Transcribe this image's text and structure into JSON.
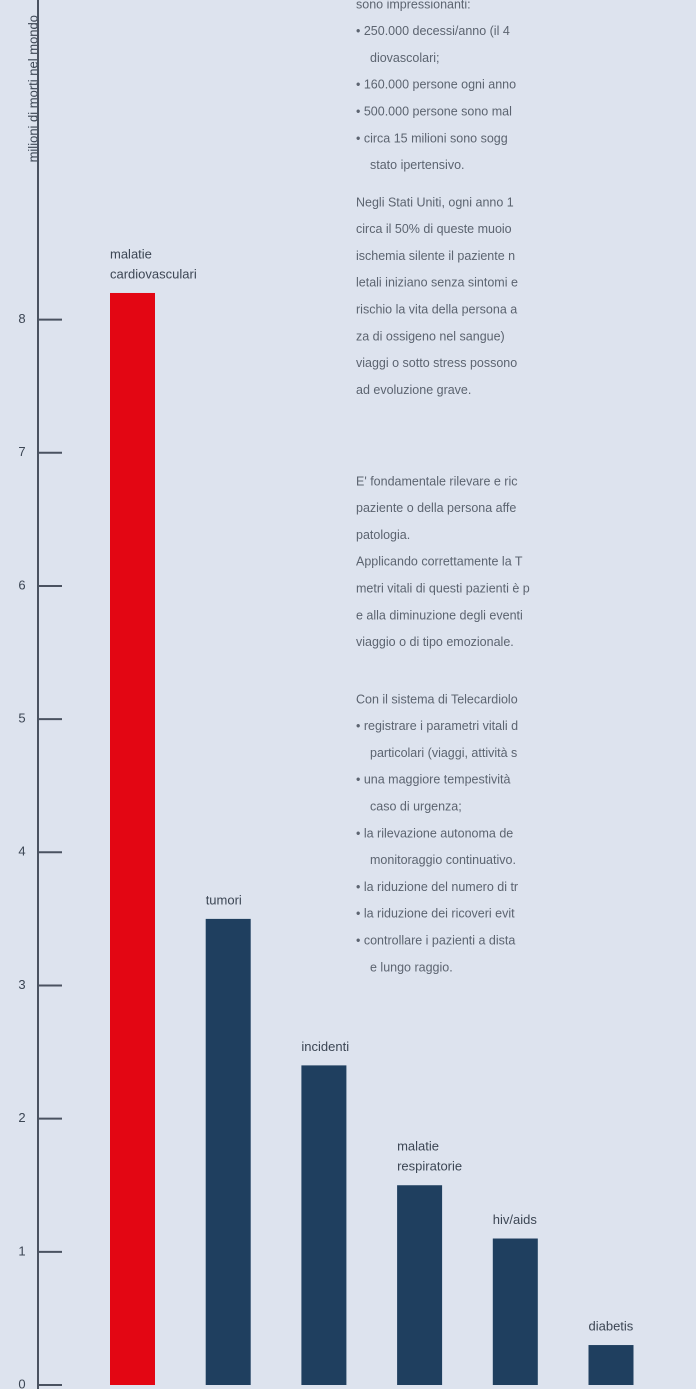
{
  "chart_data": {
    "type": "bar",
    "y_label": "milioni di morti nel mondo",
    "categories": [
      [
        "malatie",
        "cardiovasculari"
      ],
      [
        "tumori"
      ],
      [
        "incidenti"
      ],
      [
        "malatie",
        "respiratorie"
      ],
      [
        "hiv/aids"
      ],
      [
        "diabetis"
      ]
    ],
    "values": [
      8.2,
      3.5,
      2.4,
      1.5,
      1.1,
      0.3
    ],
    "colors": [
      "#e30613",
      "#1f3f5f",
      "#1f3f5f",
      "#1f3f5f",
      "#1f3f5f",
      "#1f3f5f"
    ],
    "ylim": [
      0,
      10.4
    ],
    "yticks": [
      0,
      1,
      2,
      3,
      4,
      5,
      6,
      7,
      8
    ],
    "annotations": [
      [
        "sono impressionanti:",
        "• 250.000 decessi/anno (il 4",
        "diovascolari;",
        "• 160.000 persone ogni anno",
        "• 500.000 persone sono mal",
        "• circa 15 milioni sono sogg",
        "stato ipertensivo."
      ],
      [
        "Negli Stati Uniti, ogni anno 1",
        "circa il 50% di queste muoio",
        "ischemia silente il paziente n",
        "letali iniziano senza sintomi e",
        "rischio la vita della persona a",
        "za di ossigeno nel sangue)",
        "viaggi o sotto stress possono",
        "ad evoluzione grave."
      ],
      [
        "E' fondamentale rilevare e ric",
        "paziente o della persona affe",
        "patologia.",
        "Applicando correttamente la T",
        "metri vitali di questi pazienti è p",
        "e alla diminuzione degli eventi",
        "viaggio o di tipo emozionale."
      ],
      [
        "Con il sistema di Telecardiolo",
        "• registrare i parametri vitali d",
        "particolari (viaggi, attività s",
        "• una maggiore tempestività",
        "caso di urgenza;",
        "• la rilevazione autonoma de",
        "monitoraggio continuativo.",
        "• la riduzione del numero di tr",
        "• la riduzione dei ricoveri evit",
        "• controllare i pazienti a dista",
        "e lungo raggio."
      ]
    ]
  }
}
